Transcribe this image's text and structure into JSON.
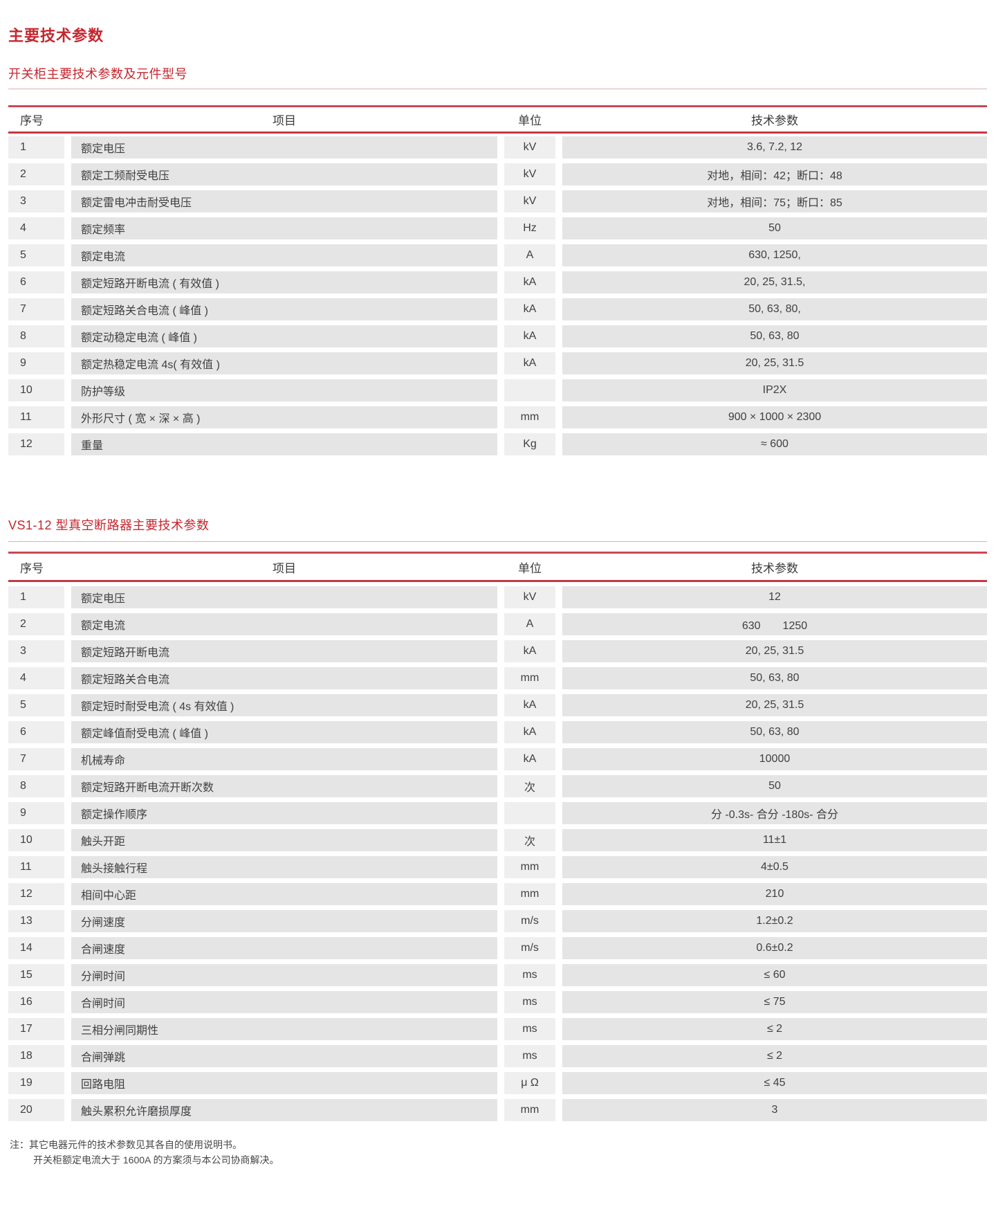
{
  "page": {
    "title": "主要技术参数",
    "accent_color": "#c5262e",
    "row_gray": "#e6e5e6",
    "row_gray_light": "#f0eff0",
    "rule_red": "#c94853",
    "notes": {
      "line1": "注：其它电器元件的技术参数见其各自的使用说明书。",
      "line2": "开关柜额定电流大于 1600A 的方案须与本公司协商解决。"
    }
  },
  "table1": {
    "title": "开关柜主要技术参数及元件型号",
    "headers": [
      "序号",
      "项目",
      "单位",
      "技术参数"
    ],
    "rows": [
      [
        "1",
        "额定电压",
        "kV",
        "3.6, 7.2, 12"
      ],
      [
        "2",
        "额定工频耐受电压",
        "kV",
        "对地，相间：42；断口：48"
      ],
      [
        "3",
        "额定雷电冲击耐受电压",
        "kV",
        "对地，相间：75；断口：85"
      ],
      [
        "4",
        "额定频率",
        "Hz",
        "50"
      ],
      [
        "5",
        "额定电流",
        "A",
        "630, 1250,"
      ],
      [
        "6",
        "额定短路开断电流 ( 有效值 )",
        "kA",
        "20, 25, 31.5,"
      ],
      [
        "7",
        "额定短路关合电流 ( 峰值 )",
        "kA",
        "50, 63, 80,"
      ],
      [
        "8",
        "额定动稳定电流 ( 峰值 )",
        "kA",
        "50, 63, 80"
      ],
      [
        "9",
        "额定热稳定电流 4s( 有效值 )",
        "kA",
        "20, 25, 31.5"
      ],
      [
        "10",
        "防护等级",
        "",
        "IP2X"
      ],
      [
        "11",
        "外形尺寸 ( 宽 × 深 × 高 )",
        "mm",
        "900 × 1000 × 2300"
      ],
      [
        "12",
        "重量",
        "Kg",
        "≈ 600"
      ]
    ]
  },
  "table2": {
    "title": "VS1-12 型真空断路器主要技术参数",
    "headers": [
      "序号",
      "项目",
      "单位",
      "技术参数"
    ],
    "rows": [
      [
        "1",
        "额定电压",
        "kV",
        "12"
      ],
      [
        "2",
        "额定电流",
        "A",
        "630　　1250"
      ],
      [
        "3",
        "额定短路开断电流",
        "kA",
        "20, 25, 31.5"
      ],
      [
        "4",
        "额定短路关合电流",
        "mm",
        "50, 63, 80"
      ],
      [
        "5",
        "额定短时耐受电流 ( 4s 有效值 )",
        "kA",
        "20, 25, 31.5"
      ],
      [
        "6",
        "额定峰值耐受电流 ( 峰值 )",
        "kA",
        "50, 63, 80"
      ],
      [
        "7",
        "机械寿命",
        "kA",
        "10000"
      ],
      [
        "8",
        "额定短路开断电流开断次数",
        "次",
        "50"
      ],
      [
        "9",
        "额定操作顺序",
        "",
        "分 -0.3s- 合分 -180s- 合分"
      ],
      [
        "10",
        "触头开距",
        "次",
        "11±1"
      ],
      [
        "11",
        "触头接触行程",
        "mm",
        "4±0.5"
      ],
      [
        "12",
        "相间中心距",
        "mm",
        "210"
      ],
      [
        "13",
        "分闸速度",
        "m/s",
        "1.2±0.2"
      ],
      [
        "14",
        "合闸速度",
        "m/s",
        "0.6±0.2"
      ],
      [
        "15",
        "分闸时间",
        "ms",
        "≤ 60"
      ],
      [
        "16",
        "合闸时间",
        "ms",
        "≤ 75"
      ],
      [
        "17",
        "三相分闸同期性",
        "ms",
        "≤ 2"
      ],
      [
        "18",
        "合闸弹跳",
        "ms",
        "≤ 2"
      ],
      [
        "19",
        "回路电阻",
        "μ Ω",
        "≤ 45"
      ],
      [
        "20",
        "触头累积允许磨损厚度",
        "mm",
        "3"
      ]
    ]
  }
}
